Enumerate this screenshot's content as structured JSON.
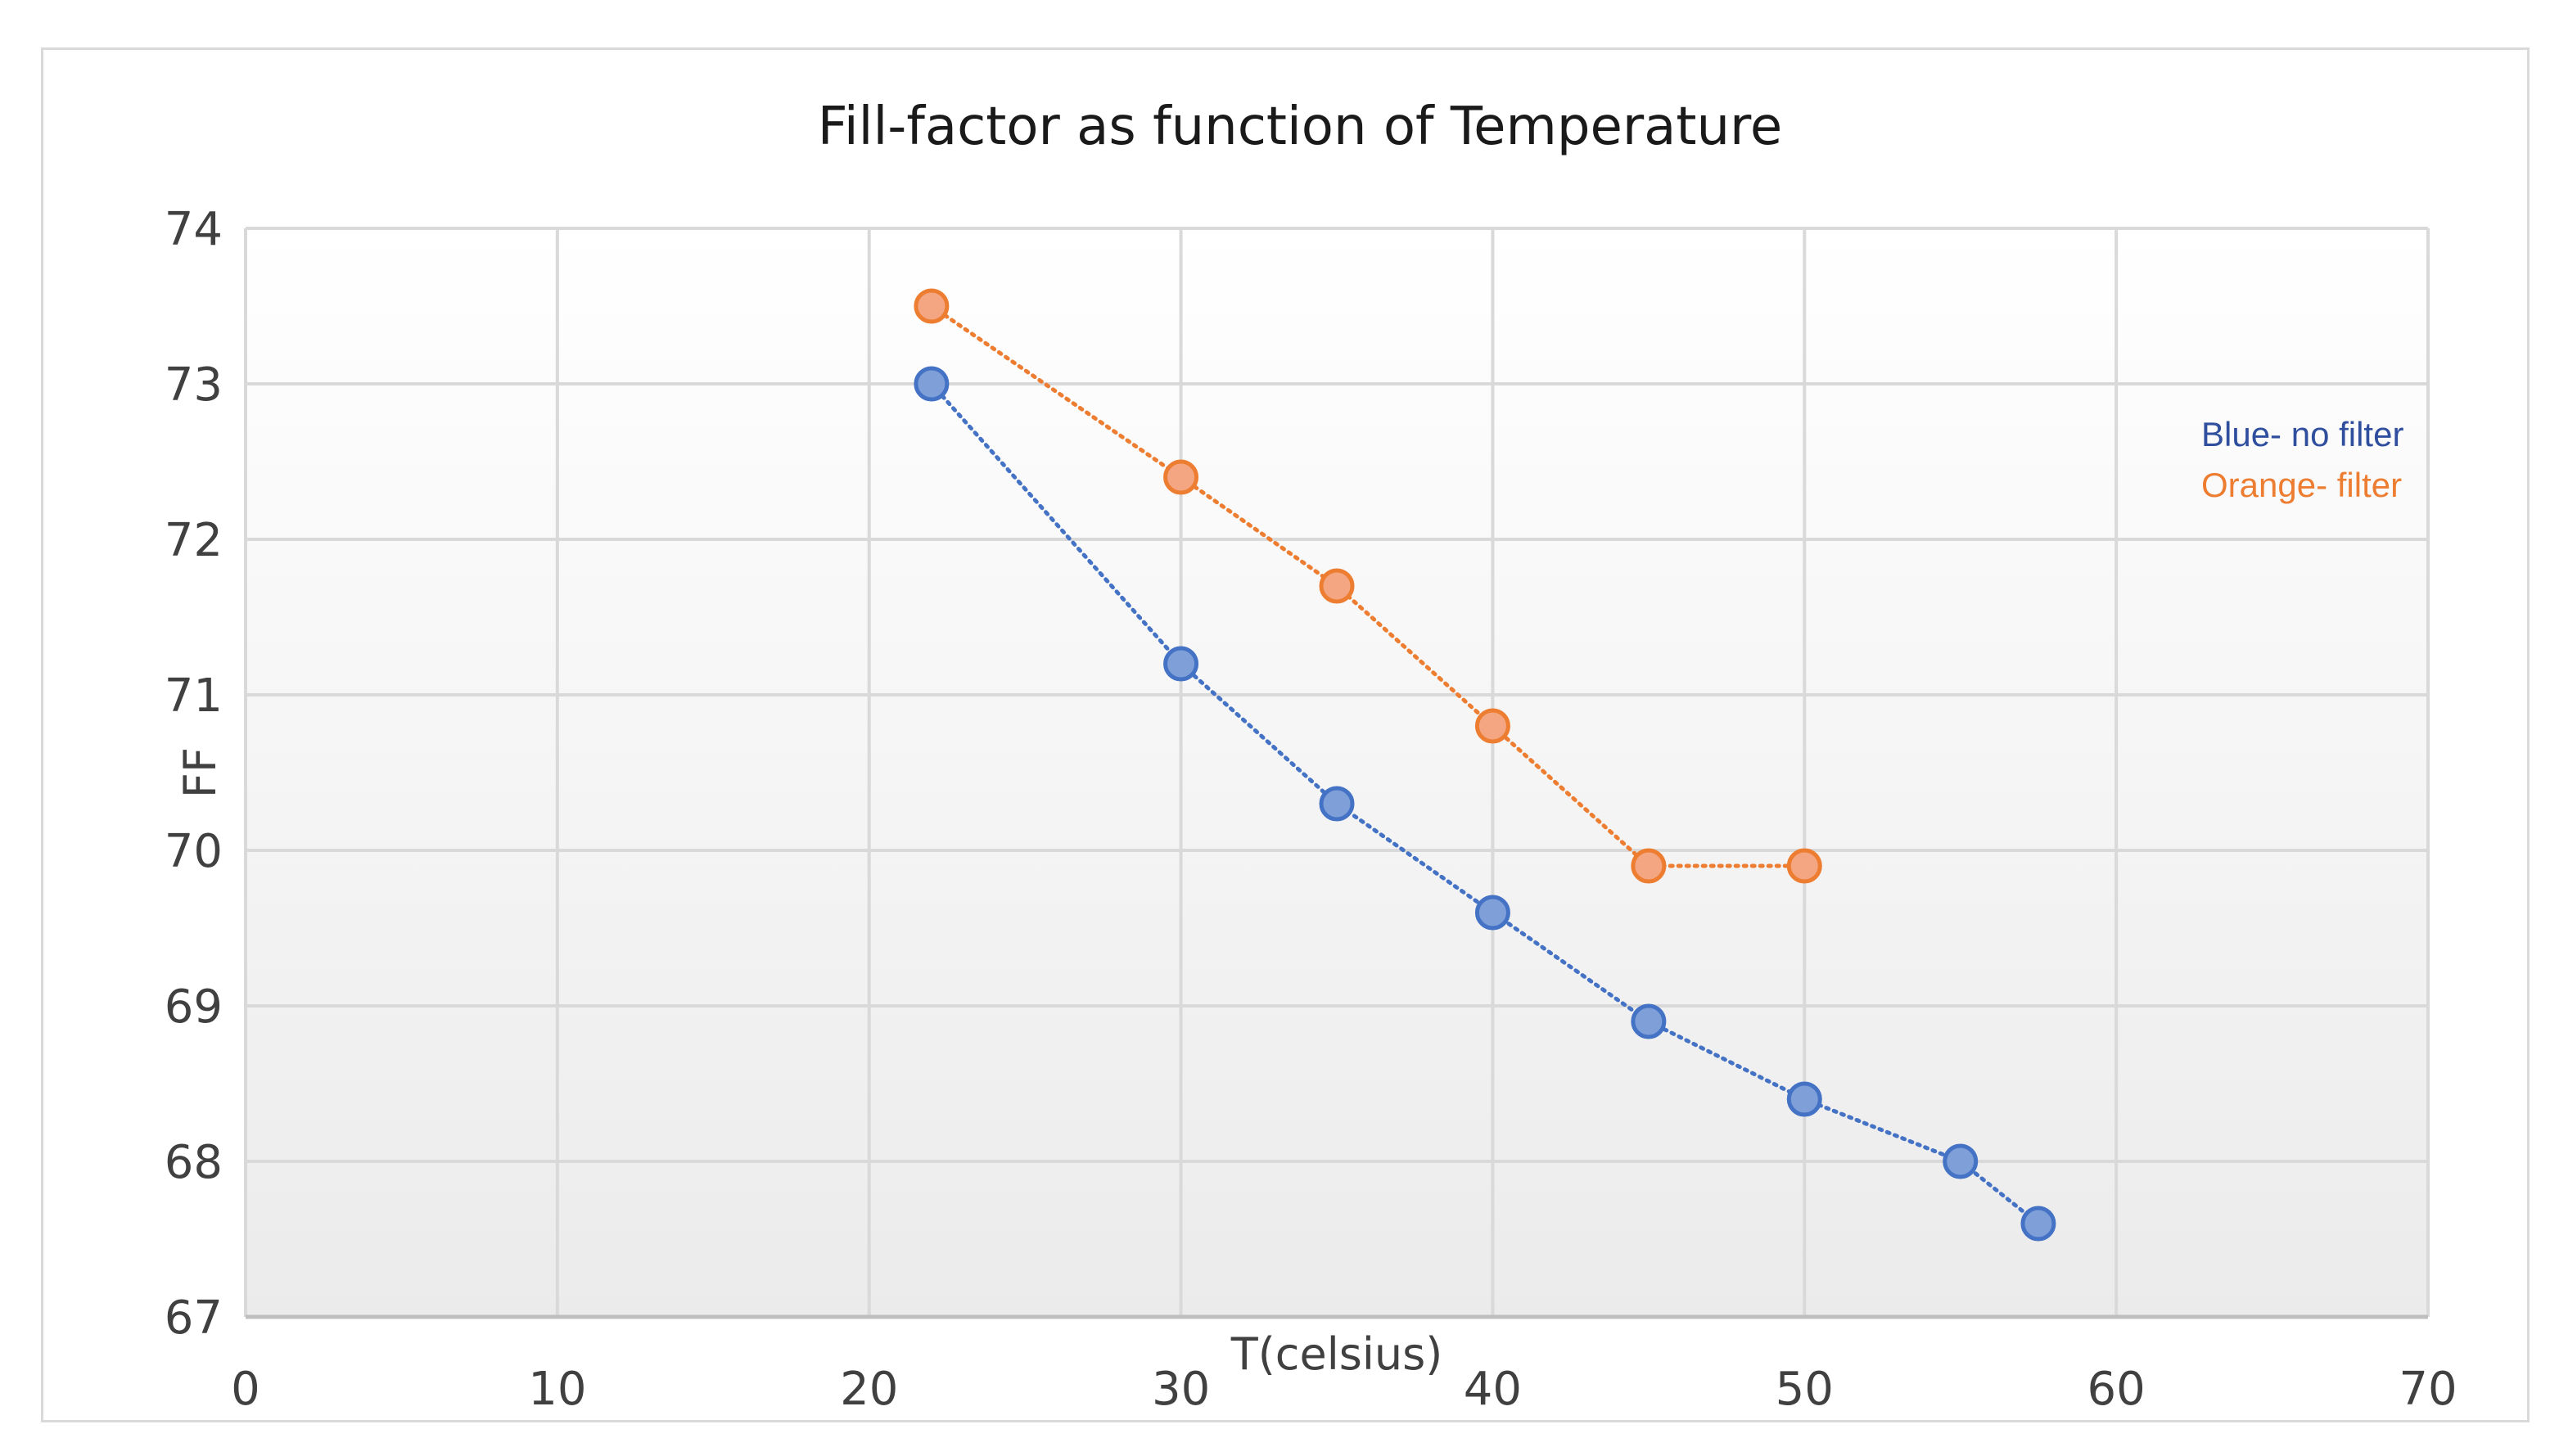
{
  "chart_data": {
    "type": "scatter",
    "title": "Fill-factor as function of Temperature",
    "xlabel": "T(celsius)",
    "ylabel": "FF",
    "xlim": [
      0,
      70
    ],
    "ylim": [
      67,
      74
    ],
    "x_ticks": [
      0,
      10,
      20,
      30,
      40,
      50,
      60,
      70
    ],
    "y_ticks": [
      67,
      68,
      69,
      70,
      71,
      72,
      73,
      74
    ],
    "grid": true,
    "line_style": "dotted",
    "legend_notes": [
      {
        "text": "Blue- no filter",
        "color": "#2f4f9e"
      },
      {
        "text": "Orange- filter",
        "color": "#ed7d31"
      }
    ],
    "series": [
      {
        "name": "no filter",
        "color": "#4472c4",
        "fill": "#7f9fd9",
        "points": [
          {
            "x": 22,
            "y": 73.0
          },
          {
            "x": 30,
            "y": 71.2
          },
          {
            "x": 35,
            "y": 70.3
          },
          {
            "x": 40,
            "y": 69.6
          },
          {
            "x": 45,
            "y": 68.9
          },
          {
            "x": 50,
            "y": 68.4
          },
          {
            "x": 55,
            "y": 68.0
          },
          {
            "x": 57.5,
            "y": 67.6
          }
        ]
      },
      {
        "name": "filter",
        "color": "#ed7d31",
        "fill": "#f4a582",
        "points": [
          {
            "x": 22,
            "y": 73.5
          },
          {
            "x": 30,
            "y": 72.4
          },
          {
            "x": 35,
            "y": 71.7
          },
          {
            "x": 40,
            "y": 70.8
          },
          {
            "x": 45,
            "y": 69.9
          },
          {
            "x": 50,
            "y": 69.9
          }
        ]
      }
    ]
  }
}
